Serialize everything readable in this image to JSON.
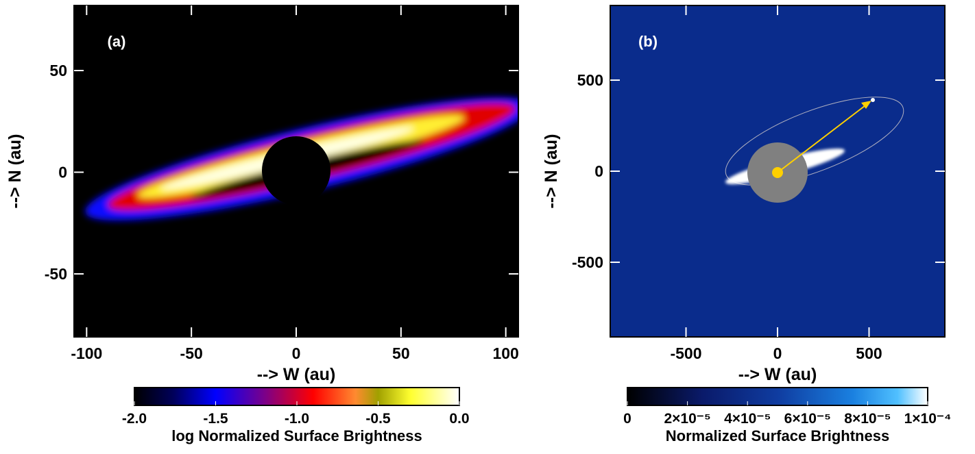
{
  "chart_data": [
    {
      "type": "image",
      "panel_label": "(a)",
      "xlabel": "--> W (au)",
      "ylabel": "--> N (au)",
      "xlim": [
        -106,
        106
      ],
      "ylim": [
        -81,
        82
      ],
      "xticks": [
        -100,
        -50,
        0,
        50,
        100
      ],
      "yticks": [
        -50,
        0,
        50
      ],
      "colorbar": {
        "label": "log Normalized Surface Brightness",
        "lim": [
          -2,
          0
        ],
        "ticks": [
          {
            "value": -2,
            "label": "-2.0"
          },
          -1.5,
          {
            "value": -1,
            "label": "-1.0"
          },
          -0.5,
          {
            "value": 0,
            "label": "0.0"
          }
        ]
      }
    },
    {
      "type": "image",
      "panel_label": "(b)",
      "xlabel": "--> W (au)",
      "ylabel": "--> N (au)",
      "xlim": [
        -914,
        914
      ],
      "ylim": [
        -910,
        910
      ],
      "xticks": [
        -500,
        0,
        500
      ],
      "yticks": [
        -500,
        0,
        500
      ],
      "colorbar": {
        "label": "Normalized Surface Brightness",
        "lim": [
          0,
          0.0001
        ],
        "ticks": [
          0,
          {
            "value": 2e-05,
            "label": "2×10⁻⁵"
          },
          {
            "value": 4e-05,
            "label": "4×10⁻⁵"
          },
          {
            "value": 6e-05,
            "label": "6×10⁻⁵"
          },
          {
            "value": 8e-05,
            "label": "8×10⁻⁵"
          },
          {
            "value": 0.0001,
            "label": "1×10⁻⁴"
          }
        ]
      }
    }
  ]
}
